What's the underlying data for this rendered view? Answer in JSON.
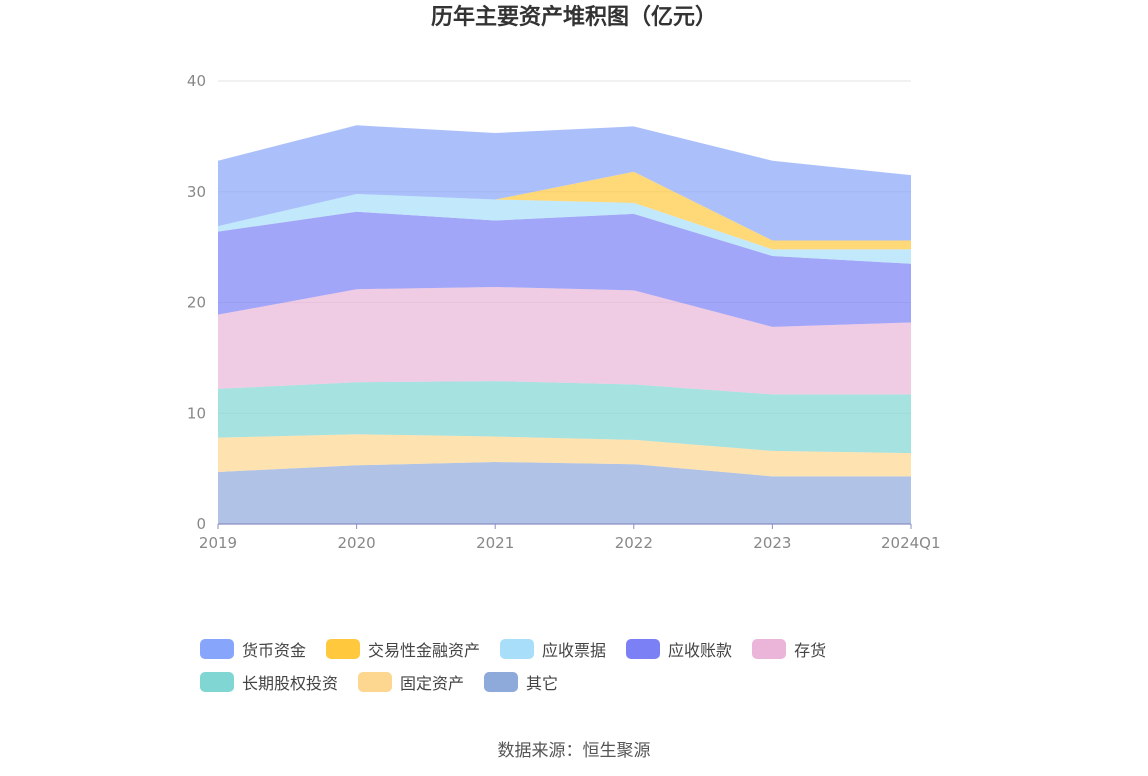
{
  "title": "历年主要资产堆积图（亿元）",
  "source": "数据来源：恒生聚源",
  "chart_data": {
    "type": "area",
    "stacked": true,
    "title": "历年主要资产堆积图（亿元）",
    "categories": [
      "2019",
      "2020",
      "2021",
      "2022",
      "2023",
      "2024Q1"
    ],
    "ylim": [
      0,
      40
    ],
    "yticks": [
      "0",
      "10",
      "20",
      "30",
      "40"
    ],
    "grid": true,
    "legend_position": "bottom",
    "series": [
      {
        "name": "其它",
        "color": "#8eaadb",
        "values": [
          4.7,
          5.3,
          5.6,
          5.4,
          4.3,
          4.3
        ]
      },
      {
        "name": "固定资产",
        "color": "#fdd68f",
        "values": [
          3.1,
          2.8,
          2.3,
          2.2,
          2.3,
          2.1
        ]
      },
      {
        "name": "长期股权投资",
        "color": "#7fd6d3",
        "values": [
          4.4,
          4.7,
          5.0,
          5.0,
          5.1,
          5.3
        ]
      },
      {
        "name": "存货",
        "color": "#eab5d9",
        "values": [
          6.7,
          8.4,
          8.5,
          8.5,
          6.1,
          6.5
        ]
      },
      {
        "name": "应收账款",
        "color": "#7b80f5",
        "values": [
          7.5,
          7.0,
          6.0,
          6.9,
          6.4,
          5.3
        ]
      },
      {
        "name": "应收票据",
        "color": "#a8defa",
        "values": [
          0.5,
          1.6,
          1.9,
          1.0,
          0.6,
          1.3
        ]
      },
      {
        "name": "交易性金融资产",
        "color": "#ffc83d",
        "values": [
          0.0,
          0.0,
          0.0,
          2.8,
          0.8,
          0.8
        ]
      },
      {
        "name": "货币资金",
        "color": "#87a5fa",
        "values": [
          5.9,
          6.2,
          6.0,
          4.1,
          7.2,
          5.9
        ]
      }
    ],
    "legend_order": [
      "货币资金",
      "交易性金融资产",
      "应收票据",
      "应收账款",
      "存货",
      "长期股权投资",
      "固定资产",
      "其它"
    ]
  }
}
